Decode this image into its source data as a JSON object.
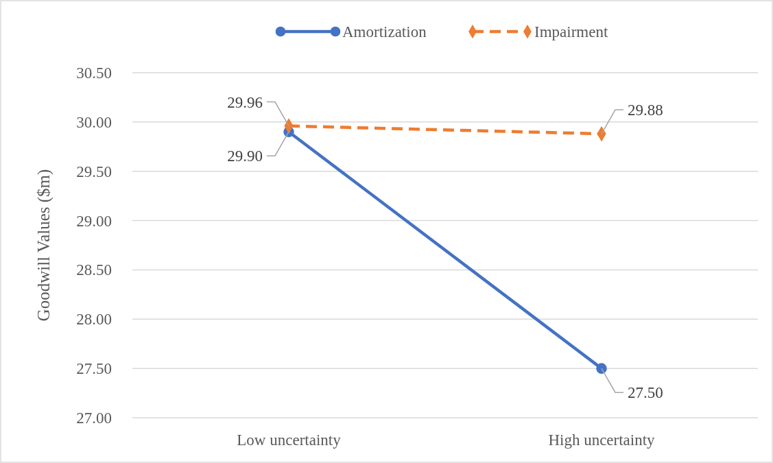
{
  "chart_data": {
    "type": "line",
    "ylabel": "Goodwill Values ($m)",
    "categories": [
      "Low uncertainty",
      "High uncertainty"
    ],
    "series": [
      {
        "name": "Amortization",
        "color": "#4472c4",
        "values": [
          29.9,
          27.5
        ],
        "value_labels": [
          "29.90",
          "27.50"
        ],
        "marker": "circle",
        "line_style": "solid"
      },
      {
        "name": "Impairment",
        "color": "#ed7d31",
        "values": [
          29.96,
          29.88
        ],
        "value_labels": [
          "29.96",
          "29.88"
        ],
        "marker": "diamond",
        "line_style": "dashed"
      }
    ],
    "ylim": [
      27,
      30.5
    ],
    "yticks": [
      {
        "value": 27,
        "label": "27.00"
      },
      {
        "value": 27.5,
        "label": "27.50"
      },
      {
        "value": 28,
        "label": "28.00"
      },
      {
        "value": 28.5,
        "label": "28.50"
      },
      {
        "value": 29,
        "label": "29.00"
      },
      {
        "value": 29.5,
        "label": "29.50"
      },
      {
        "value": 30,
        "label": "30.00"
      },
      {
        "value": 30.5,
        "label": "30.50"
      }
    ],
    "grid": "y",
    "legend": "top"
  }
}
